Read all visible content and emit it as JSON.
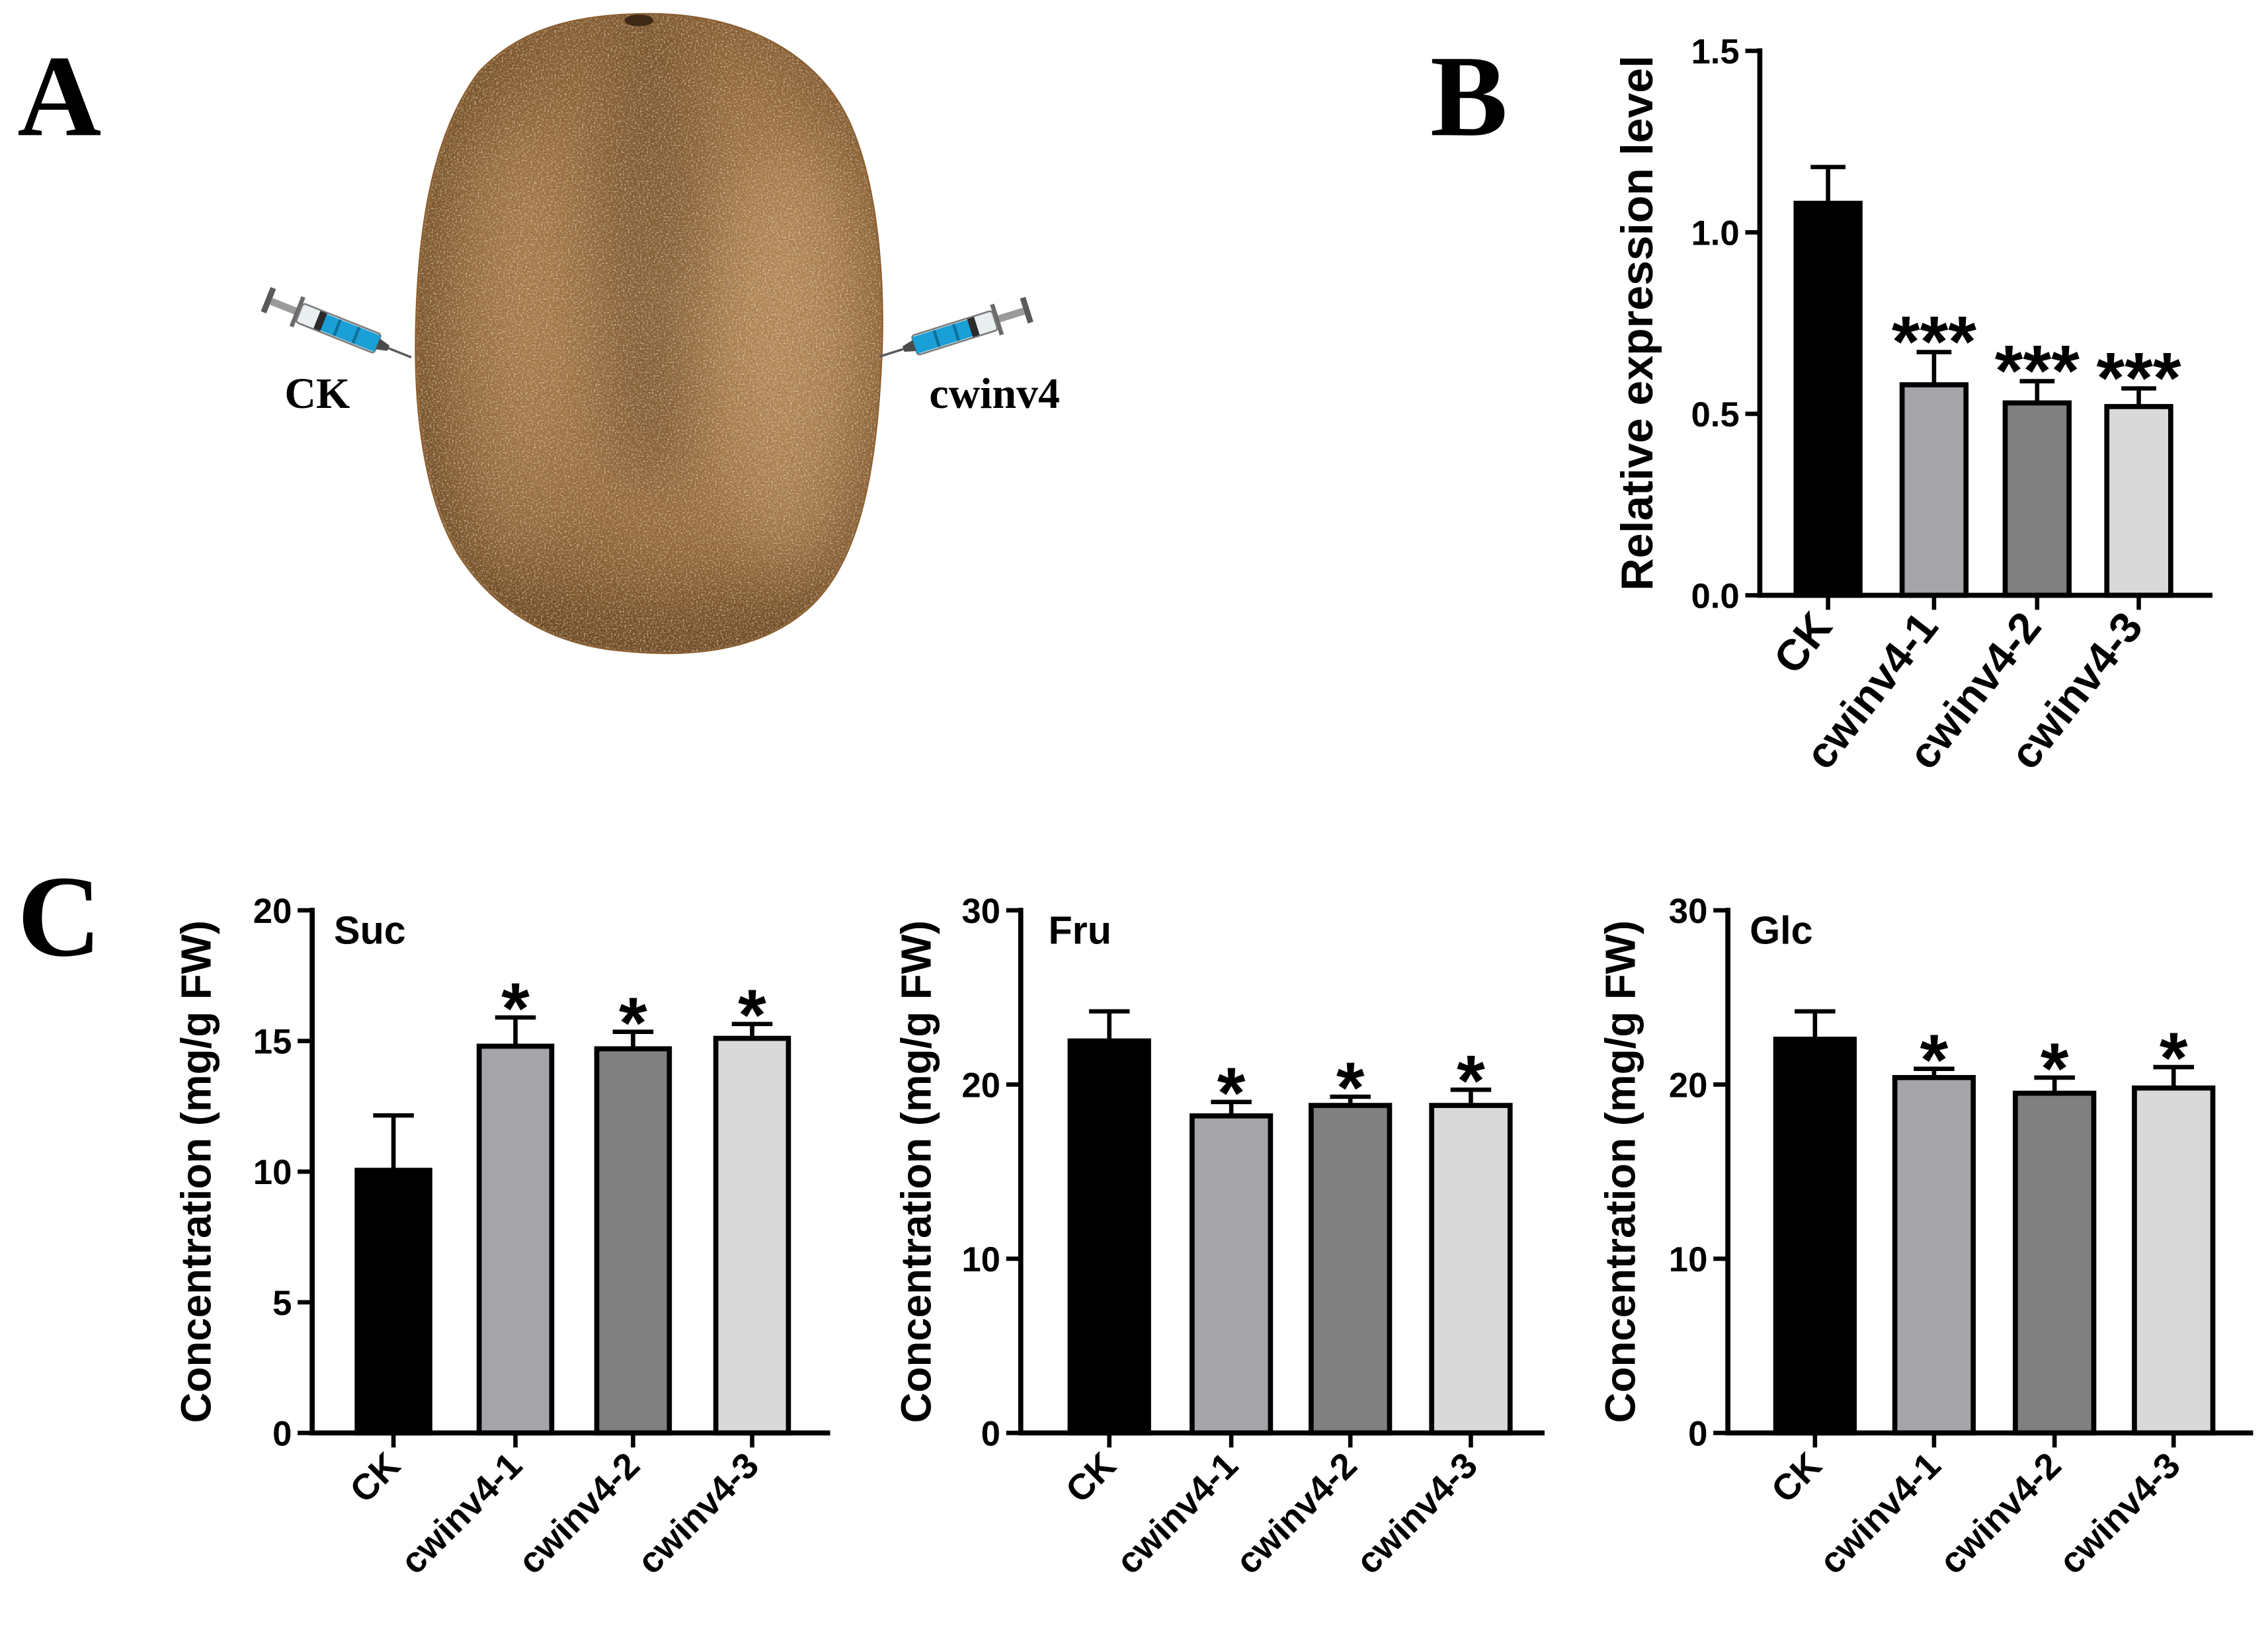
{
  "figure": {
    "panel_labels": {
      "a": "A",
      "b": "B",
      "c": "C"
    },
    "panel_a": {
      "left_label": "CK",
      "right_label": "cwinv4"
    }
  },
  "colors": {
    "CK": "#000000",
    "cwinv4-1": "#a4a4a9",
    "cwinv4-2": "#808080",
    "cwinv4-3": "#d9d9d9",
    "fruit_skin": "#9b6e40",
    "syringe_liquid": "#1a9fd6"
  },
  "chart_data": [
    {
      "type": "bar",
      "categories": [
        "CK",
        "cwinv4-1",
        "cwinv4-2",
        "cwinv4-3"
      ],
      "values": [
        1.08,
        0.58,
        0.53,
        0.52
      ],
      "error": [
        0.1,
        0.09,
        0.06,
        0.05
      ],
      "significance": [
        "",
        "***",
        "***",
        "***"
      ],
      "ylabel": "Relative expression level",
      "ylim": [
        0,
        1.5
      ],
      "yticks": [
        0,
        0.5,
        1.0,
        1.5
      ],
      "ytick_labels": [
        "0.0",
        "0.5",
        "1.0",
        "1.5"
      ],
      "bar_colors": [
        "#000000",
        "#a4a4a9",
        "#808080",
        "#d9d9d9"
      ],
      "grid": false
    },
    {
      "type": "bar",
      "title": "Suc",
      "categories": [
        "CK",
        "cwinv4-1",
        "cwinv4-2",
        "cwinv4-3"
      ],
      "values": [
        10.05,
        14.8,
        14.7,
        15.1
      ],
      "error": [
        2.1,
        1.1,
        0.65,
        0.55
      ],
      "significance": [
        "",
        "*",
        "*",
        "*"
      ],
      "ylabel": "Concentration (mg/g FW)",
      "ylim": [
        0,
        20
      ],
      "yticks": [
        0,
        5,
        10,
        15,
        20
      ],
      "ytick_labels": [
        "0",
        "5",
        "10",
        "15",
        "20"
      ],
      "bar_colors": [
        "#000000",
        "#a4a4a9",
        "#808080",
        "#d9d9d9"
      ],
      "grid": false
    },
    {
      "type": "bar",
      "title": "Fru",
      "categories": [
        "CK",
        "cwinv4-1",
        "cwinv4-2",
        "cwinv4-3"
      ],
      "values": [
        22.5,
        18.2,
        18.8,
        18.8
      ],
      "error": [
        1.7,
        0.8,
        0.5,
        0.9
      ],
      "significance": [
        "",
        "*",
        "*",
        "*"
      ],
      "ylabel": "Concentration (mg/g FW)",
      "ylim": [
        0,
        30
      ],
      "yticks": [
        0,
        10,
        20,
        30
      ],
      "ytick_labels": [
        "0",
        "10",
        "20",
        "30"
      ],
      "bar_colors": [
        "#000000",
        "#a4a4a9",
        "#808080",
        "#d9d9d9"
      ],
      "grid": false
    },
    {
      "type": "bar",
      "title": "Glc",
      "categories": [
        "CK",
        "cwinv4-1",
        "cwinv4-2",
        "cwinv4-3"
      ],
      "values": [
        22.6,
        20.4,
        19.5,
        19.8
      ],
      "error": [
        1.6,
        0.5,
        0.9,
        1.2
      ],
      "significance": [
        "",
        "*",
        "*",
        "*"
      ],
      "ylabel": "Concentration (mg/g FW)",
      "ylim": [
        0,
        30
      ],
      "yticks": [
        0,
        10,
        20,
        30
      ],
      "ytick_labels": [
        "0",
        "10",
        "20",
        "30"
      ],
      "bar_colors": [
        "#000000",
        "#a4a4a9",
        "#808080",
        "#d9d9d9"
      ],
      "grid": false
    }
  ]
}
